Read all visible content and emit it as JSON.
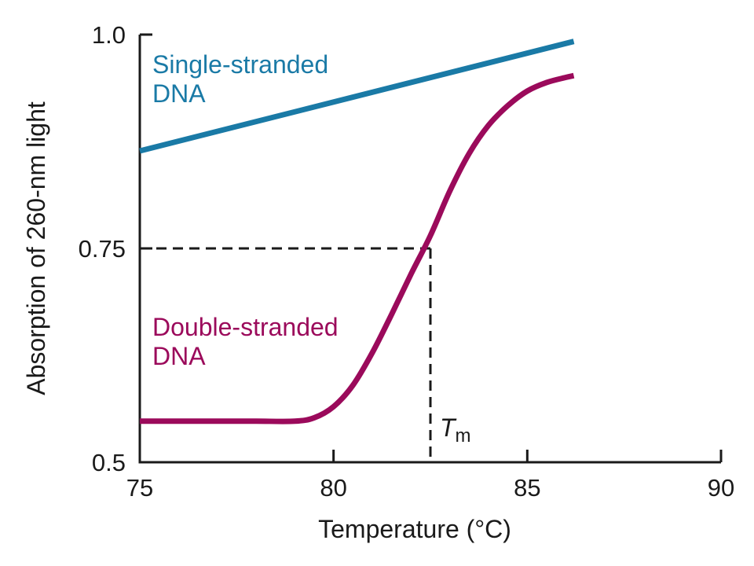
{
  "chart_data": {
    "type": "line",
    "title": "",
    "xlabel": "Temperature (°C)",
    "ylabel": "Absorption of 260-nm light",
    "xlim": [
      75,
      90
    ],
    "ylim": [
      0.5,
      1.0
    ],
    "x_ticks": [
      {
        "value": 75,
        "label": "75"
      },
      {
        "value": 80,
        "label": "80"
      },
      {
        "value": 85,
        "label": "85"
      },
      {
        "value": 90,
        "label": "90"
      }
    ],
    "y_ticks": [
      {
        "value": 0.5,
        "label": "0.5"
      },
      {
        "value": 0.75,
        "label": "0.75"
      },
      {
        "value": 1.0,
        "label": "1.0"
      }
    ],
    "grid": false,
    "legend": "none",
    "series": [
      {
        "label_lines": [
          "Single-stranded",
          "DNA"
        ],
        "color": "#1a7aa6",
        "x": [
          75,
          86.2
        ],
        "y": [
          0.864,
          0.992
        ]
      },
      {
        "label_lines": [
          "Double-stranded",
          "DNA"
        ],
        "color": "#9b0a5b",
        "x": [
          75,
          76,
          77,
          78,
          79,
          79.5,
          80,
          80.5,
          81,
          81.5,
          82,
          82.5,
          83,
          83.5,
          84,
          84.5,
          85,
          85.5,
          86,
          86.2
        ],
        "y": [
          0.548,
          0.548,
          0.548,
          0.548,
          0.548,
          0.552,
          0.565,
          0.59,
          0.628,
          0.673,
          0.72,
          0.765,
          0.817,
          0.861,
          0.894,
          0.917,
          0.934,
          0.944,
          0.95,
          0.952
        ]
      }
    ],
    "annotation": {
      "tm_label": "T",
      "tm_subscript": "m",
      "tm_x": 82.5,
      "tm_y": 0.75,
      "line_style": "dashed"
    }
  }
}
